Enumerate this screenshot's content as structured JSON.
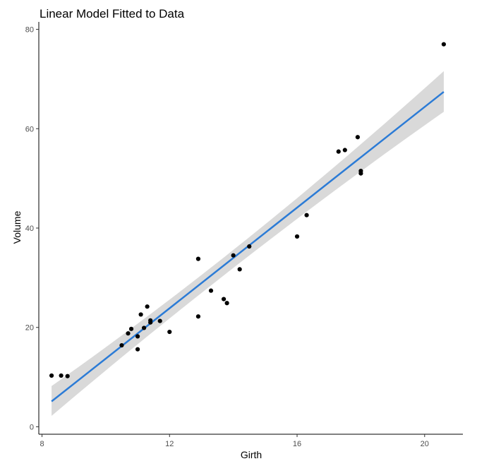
{
  "chart_data": {
    "type": "scatter",
    "title": "Linear Model Fitted to Data",
    "xlabel": "Girth",
    "ylabel": "Volume",
    "xlim": [
      7.9,
      21.2
    ],
    "ylim": [
      -1.5,
      81.5
    ],
    "x_ticks": [
      8,
      12,
      16,
      20
    ],
    "y_ticks": [
      0,
      20,
      40,
      60,
      80
    ],
    "grid": false,
    "points": [
      {
        "x": 8.3,
        "y": 10.3
      },
      {
        "x": 8.6,
        "y": 10.3
      },
      {
        "x": 8.8,
        "y": 10.2
      },
      {
        "x": 10.5,
        "y": 16.4
      },
      {
        "x": 10.7,
        "y": 18.8
      },
      {
        "x": 10.8,
        "y": 19.7
      },
      {
        "x": 11.0,
        "y": 15.6
      },
      {
        "x": 11.0,
        "y": 18.2
      },
      {
        "x": 11.1,
        "y": 22.6
      },
      {
        "x": 11.2,
        "y": 19.9
      },
      {
        "x": 11.3,
        "y": 24.2
      },
      {
        "x": 11.4,
        "y": 21.0
      },
      {
        "x": 11.4,
        "y": 21.4
      },
      {
        "x": 11.7,
        "y": 21.3
      },
      {
        "x": 12.0,
        "y": 19.1
      },
      {
        "x": 12.9,
        "y": 22.2
      },
      {
        "x": 12.9,
        "y": 33.8
      },
      {
        "x": 13.3,
        "y": 27.4
      },
      {
        "x": 13.7,
        "y": 25.7
      },
      {
        "x": 13.8,
        "y": 24.9
      },
      {
        "x": 14.0,
        "y": 34.5
      },
      {
        "x": 14.2,
        "y": 31.7
      },
      {
        "x": 14.5,
        "y": 36.3
      },
      {
        "x": 16.0,
        "y": 38.3
      },
      {
        "x": 16.3,
        "y": 42.6
      },
      {
        "x": 17.3,
        "y": 55.4
      },
      {
        "x": 17.5,
        "y": 55.7
      },
      {
        "x": 17.9,
        "y": 58.3
      },
      {
        "x": 18.0,
        "y": 51.5
      },
      {
        "x": 18.0,
        "y": 51.0
      },
      {
        "x": 20.6,
        "y": 77.0
      }
    ],
    "fit": {
      "method": "lm",
      "x_range": [
        8.3,
        20.6
      ],
      "intercept": -36.94,
      "slope": 5.066
    },
    "confidence_band": [
      {
        "x": 8.3,
        "lower": 2.2,
        "upper": 8.2
      },
      {
        "x": 13.25,
        "lower": 28.2,
        "upper": 31.8
      },
      {
        "x": 20.6,
        "lower": 63.4,
        "upper": 71.6
      }
    ],
    "colors": {
      "points": "#000000",
      "line": "#2b7bd6",
      "band": "#d9d9d9",
      "background": "#ffffff"
    }
  }
}
